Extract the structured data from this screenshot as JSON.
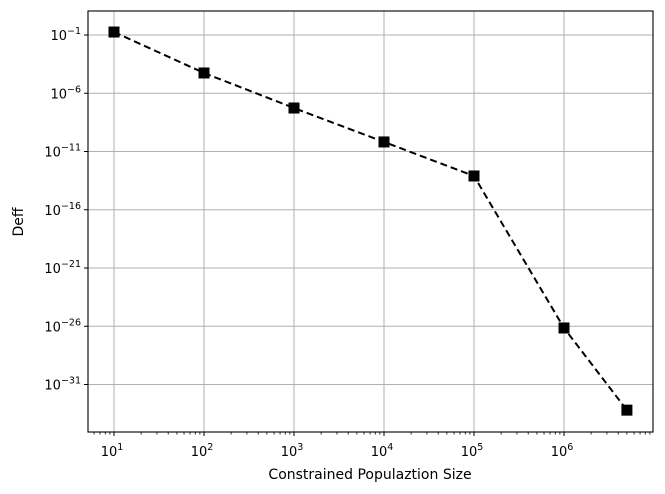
{
  "chart_data": {
    "type": "line",
    "title": "",
    "xlabel": "Constrained Populaztion Size",
    "ylabel": "Deff",
    "xscale": "log",
    "yscale": "log",
    "x": [
      10,
      100,
      1000,
      10000,
      100000,
      1000000,
      5000000
    ],
    "series": [
      {
        "name": "Deff",
        "values": [
          0.18,
          5.5e-05,
          5.4e-08,
          6.6e-11,
          7.9e-14,
          7.1e-27,
          6.3e-34
        ],
        "style": {
          "line": "dashed",
          "marker": "square",
          "color": "#000000"
        }
      }
    ],
    "x_ticks": [
      {
        "base": "10",
        "exp": "1",
        "value": 10
      },
      {
        "base": "10",
        "exp": "2",
        "value": 100
      },
      {
        "base": "10",
        "exp": "3",
        "value": 1000
      },
      {
        "base": "10",
        "exp": "4",
        "value": 10000
      },
      {
        "base": "10",
        "exp": "5",
        "value": 100000
      },
      {
        "base": "10",
        "exp": "6",
        "value": 1000000
      }
    ],
    "y_ticks": [
      {
        "base": "10",
        "exp": "−1",
        "value": -1
      },
      {
        "base": "10",
        "exp": "−6",
        "value": -6
      },
      {
        "base": "10",
        "exp": "−11",
        "value": -11
      },
      {
        "base": "10",
        "exp": "−16",
        "value": -16
      },
      {
        "base": "10",
        "exp": "−21",
        "value": -21
      },
      {
        "base": "10",
        "exp": "−26",
        "value": -26
      },
      {
        "base": "10",
        "exp": "−31",
        "value": -31
      }
    ],
    "xlim": [
      5.8,
      8800000
    ],
    "ylim_log10": [
      -35.3,
      0.9
    ],
    "grid": true,
    "legend": null
  },
  "colors": {
    "line": "#000000",
    "grid": "#b0b0b0",
    "frame": "#000000"
  }
}
